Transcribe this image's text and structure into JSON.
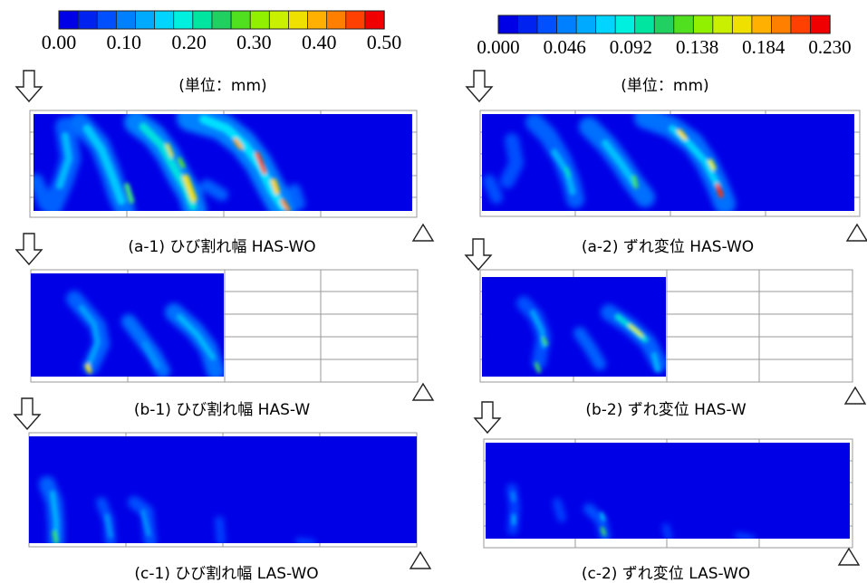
{
  "colormaps": {
    "stops": [
      "#0000e6",
      "#0022f0",
      "#0050ff",
      "#0080ff",
      "#00aaff",
      "#00d4ff",
      "#00f0e0",
      "#00e6a0",
      "#20d060",
      "#50e020",
      "#90f000",
      "#c8f000",
      "#f0e000",
      "#ffb000",
      "#ff8000",
      "#ff4000",
      "#f00000"
    ],
    "left": {
      "tick_labels": [
        "0.00",
        "0.10",
        "0.20",
        "0.30",
        "0.40",
        "0.50"
      ],
      "min": 0.0,
      "max": 0.5,
      "unit": "(単位：mm)"
    },
    "right": {
      "tick_labels": [
        "0.000",
        "0.046",
        "0.092",
        "0.138",
        "0.184",
        "0.230"
      ],
      "min": 0.0,
      "max": 0.23,
      "unit": "(単位：mm)"
    }
  },
  "panels": [
    {
      "id": "a-1",
      "caption": "(a-1)  ひび割れ幅 HAS-WO",
      "quantity": "crack-width",
      "specimen": "HAS-WO"
    },
    {
      "id": "a-2",
      "caption": "(a-2)  ずれ変位 HAS-WO",
      "quantity": "slip-displacement",
      "specimen": "HAS-WO"
    },
    {
      "id": "b-1",
      "caption": "(b-1)  ひび割れ幅 HAS-W",
      "quantity": "crack-width",
      "specimen": "HAS-W"
    },
    {
      "id": "b-2",
      "caption": "(b-2)  ずれ変位 HAS-W",
      "quantity": "slip-displacement",
      "specimen": "HAS-W"
    },
    {
      "id": "c-1",
      "caption": "(c-1)  ひび割れ幅 LAS-WO",
      "quantity": "crack-width",
      "specimen": "LAS-WO"
    },
    {
      "id": "c-2",
      "caption": "(c-2)  ずれ変位 LAS-WO",
      "quantity": "slip-displacement",
      "specimen": "LAS-WO"
    }
  ],
  "symbols": {
    "load": "load-arrow",
    "support": "support-triangle"
  }
}
